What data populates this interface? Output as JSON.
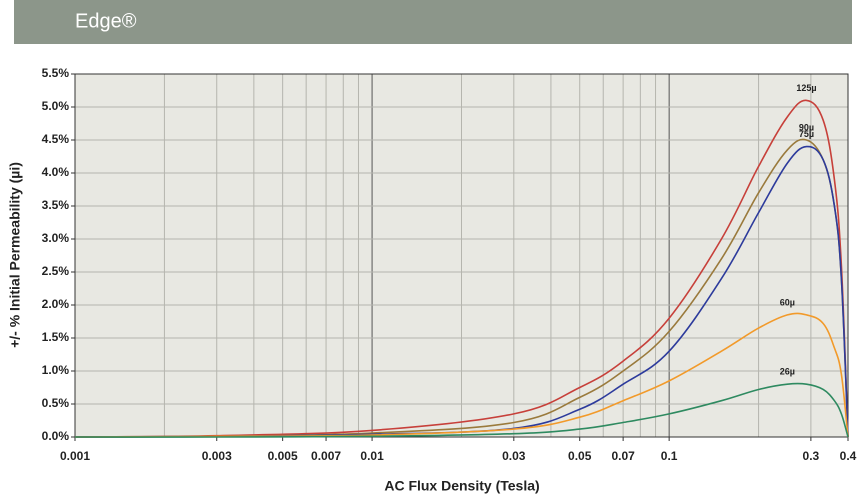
{
  "chart_data": {
    "type": "line",
    "title": "Edge®",
    "xlabel": "AC Flux Density (Tesla)",
    "ylabel": "+/- % Initial Permeability (µi)",
    "xscale": "log",
    "grid": true,
    "x": [
      0.001,
      0.003,
      0.01,
      0.03,
      0.05,
      0.07,
      0.1,
      0.15,
      0.2,
      0.25,
      0.29,
      0.33,
      0.36,
      0.38,
      0.4
    ],
    "series": [
      {
        "name": "125µ",
        "color": "#c7403a",
        "values": [
          0,
          0.02,
          0.1,
          0.35,
          0.75,
          1.15,
          1.8,
          3.0,
          4.1,
          4.85,
          5.1,
          4.8,
          3.9,
          2.6,
          0
        ]
      },
      {
        "name": "90µ",
        "color": "#9a7a3c",
        "values": [
          0,
          0.01,
          0.06,
          0.22,
          0.6,
          1.0,
          1.6,
          2.7,
          3.7,
          4.35,
          4.5,
          4.2,
          3.5,
          2.4,
          0
        ]
      },
      {
        "name": "75µ",
        "color": "#2d3b9c",
        "values": [
          0,
          0.01,
          0.04,
          0.13,
          0.42,
          0.8,
          1.3,
          2.4,
          3.4,
          4.15,
          4.4,
          4.2,
          3.5,
          2.4,
          0
        ]
      },
      {
        "name": "60µ",
        "color": "#f29a2a",
        "values": [
          0,
          0.01,
          0.03,
          0.12,
          0.3,
          0.55,
          0.85,
          1.3,
          1.65,
          1.85,
          1.85,
          1.72,
          1.35,
          0.95,
          0
        ]
      },
      {
        "name": "26µ",
        "color": "#2e8a60",
        "values": [
          0,
          0,
          0.01,
          0.05,
          0.12,
          0.22,
          0.35,
          0.55,
          0.72,
          0.8,
          0.8,
          0.72,
          0.55,
          0.35,
          0
        ]
      }
    ],
    "xlim": [
      0.001,
      0.4
    ],
    "xticks": [
      0.001,
      0.003,
      0.005,
      0.007,
      0.01,
      0.03,
      0.05,
      0.07,
      0.1,
      0.3,
      0.4
    ],
    "ylim": [
      0,
      5.5
    ],
    "yticks": [
      {
        "value": 0,
        "label": "0.0%"
      },
      {
        "value": 0.5,
        "label": "0.5%"
      },
      {
        "value": 1,
        "label": "1.0%"
      },
      {
        "value": 1.5,
        "label": "1.5%"
      },
      {
        "value": 2,
        "label": "2.0%"
      },
      {
        "value": 2.5,
        "label": "2.5%"
      },
      {
        "value": 3,
        "label": "3.0%"
      },
      {
        "value": 3.5,
        "label": "3.5%"
      },
      {
        "value": 4,
        "label": "4.0%"
      },
      {
        "value": 4.5,
        "label": "4.5%"
      },
      {
        "value": 5,
        "label": "5.0%"
      },
      {
        "value": 5.5,
        "label": "5.5%"
      }
    ]
  }
}
